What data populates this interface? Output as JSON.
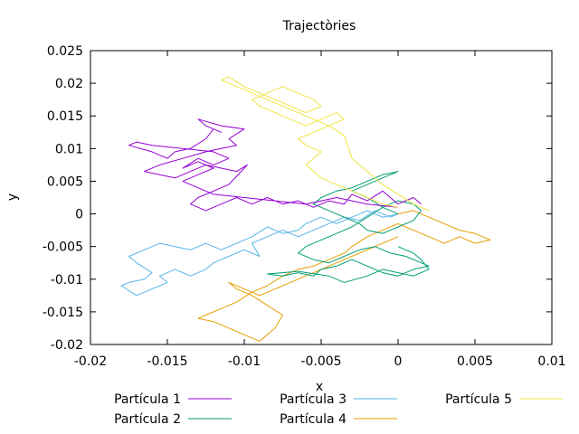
{
  "chart_data": {
    "type": "line",
    "title": "Trajectòries",
    "xlabel": "x",
    "ylabel": "y",
    "xlim": [
      -0.02,
      0.01
    ],
    "ylim": [
      -0.02,
      0.025
    ],
    "xticks": [
      "-0.02",
      "-0.015",
      "-0.01",
      "-0.005",
      "0",
      "0.005",
      "0.01"
    ],
    "xtick_values": [
      -0.02,
      -0.015,
      -0.01,
      -0.005,
      0,
      0.005,
      0.01
    ],
    "yticks": [
      "-0.02",
      "-0.015",
      "-0.01",
      "-0.005",
      "0",
      "0.005",
      "0.01",
      "0.015",
      "0.02",
      "0.025"
    ],
    "ytick_values": [
      -0.02,
      -0.015,
      -0.01,
      -0.005,
      0,
      0.005,
      0.01,
      0.015,
      0.02,
      0.025
    ],
    "grid": false,
    "legend_position": "bottom",
    "series": [
      {
        "name": "Partícula 1",
        "color": "#9400d3",
        "x": [
          0,
          -0.002,
          -0.004,
          -0.006,
          -0.008,
          -0.01,
          -0.012,
          -0.013,
          -0.014,
          -0.013,
          -0.012,
          -0.013,
          -0.014,
          -0.013,
          -0.012,
          -0.011,
          -0.012,
          -0.014,
          -0.016,
          -0.017,
          -0.0175,
          -0.016,
          -0.015,
          -0.0145,
          -0.0135,
          -0.0125,
          -0.012,
          -0.0115,
          -0.0125,
          -0.013,
          -0.0115,
          -0.01,
          -0.011,
          -0.0105,
          -0.0115,
          -0.0125,
          -0.014,
          -0.0155,
          -0.0165,
          -0.0155,
          -0.0145,
          -0.0135,
          -0.0125,
          -0.0115,
          -0.0105,
          -0.0098,
          -0.011,
          -0.012,
          -0.013,
          -0.0135,
          -0.0125,
          -0.0115,
          -0.0105,
          -0.0095,
          -0.0085,
          -0.0075,
          -0.0065,
          -0.0055,
          -0.0045,
          -0.0035,
          -0.003,
          -0.002,
          -0.001,
          0,
          0.001,
          0.0015
        ],
        "y": [
          0.001,
          0.0015,
          0.0025,
          0.0015,
          0.002,
          0.0025,
          0.003,
          0.004,
          0.005,
          0.006,
          0.007,
          0.008,
          0.007,
          0.0085,
          0.0075,
          0.0085,
          0.0095,
          0.01,
          0.0105,
          0.011,
          0.0105,
          0.0095,
          0.0085,
          0.0095,
          0.01,
          0.0115,
          0.013,
          0.0125,
          0.0135,
          0.0145,
          0.0135,
          0.013,
          0.0115,
          0.0105,
          0.01,
          0.0095,
          0.0085,
          0.0075,
          0.0065,
          0.006,
          0.0055,
          0.0065,
          0.0075,
          0.007,
          0.0065,
          0.0075,
          0.0045,
          0.0035,
          0.0025,
          0.0015,
          0.0005,
          0.0015,
          0.0025,
          0.0015,
          0.0025,
          0.0015,
          0.002,
          0.001,
          0.002,
          0.0015,
          0.003,
          0.002,
          0.0035,
          0.0015,
          0.0025,
          0.0015
        ]
      },
      {
        "name": "Partícula 2",
        "color": "#009e73",
        "x": [
          0,
          -0.001,
          -0.002,
          -0.003,
          -0.002,
          -0.001,
          0,
          -0.001,
          -0.002,
          -0.003,
          -0.004,
          -0.005,
          -0.0055,
          -0.0045,
          -0.0035,
          -0.0025,
          -0.002,
          -0.001,
          0,
          0.001,
          0.0015,
          0.001,
          0,
          -0.001,
          -0.002,
          -0.003,
          -0.004,
          -0.005,
          -0.006,
          -0.0065,
          -0.0055,
          -0.0045,
          -0.0035,
          -0.0025,
          -0.0015,
          -0.0005,
          0.0005,
          0.0015,
          0.002,
          0.001,
          0,
          -0.001,
          -0.002,
          -0.003,
          -0.004,
          -0.005,
          -0.0055,
          -0.0065,
          -0.0075,
          -0.0085,
          -0.0065,
          -0.0045,
          -0.0035,
          -0.002,
          -0.001,
          0,
          0.001,
          0.002,
          0.0015,
          0.001,
          0
        ],
        "y": [
          0,
          0.001,
          0.0025,
          0.0035,
          0.0045,
          0.0055,
          0.0065,
          0.006,
          0.005,
          0.004,
          0.0035,
          0.0025,
          0.0015,
          0.0005,
          -0.0005,
          -0.0015,
          -0.0025,
          -0.003,
          -0.002,
          -0.001,
          0.0005,
          0.0015,
          0.002,
          0.001,
          -0.0005,
          -0.002,
          -0.003,
          -0.004,
          -0.005,
          -0.006,
          -0.007,
          -0.0075,
          -0.0065,
          -0.0055,
          -0.005,
          -0.006,
          -0.0065,
          -0.0075,
          -0.008,
          -0.0085,
          -0.0095,
          -0.009,
          -0.008,
          -0.007,
          -0.008,
          -0.0085,
          -0.0095,
          -0.009,
          -0.0095,
          -0.0092,
          -0.0088,
          -0.0095,
          -0.0105,
          -0.0095,
          -0.0085,
          -0.009,
          -0.0095,
          -0.0085,
          -0.007,
          -0.006,
          -0.005
        ]
      },
      {
        "name": "Partícula 3",
        "color": "#56b4e9",
        "x": [
          0,
          -0.001,
          -0.002,
          -0.003,
          -0.004,
          -0.005,
          -0.006,
          -0.0065,
          -0.0075,
          -0.0085,
          -0.0095,
          -0.0105,
          -0.0115,
          -0.0125,
          -0.0135,
          -0.0145,
          -0.0155,
          -0.0165,
          -0.0175,
          -0.017,
          -0.016,
          -0.0165,
          -0.0175,
          -0.018,
          -0.017,
          -0.016,
          -0.015,
          -0.0155,
          -0.0145,
          -0.0135,
          -0.0125,
          -0.012,
          -0.011,
          -0.01,
          -0.009,
          -0.0095,
          -0.0085,
          -0.0075,
          -0.0065,
          -0.0055,
          -0.0045,
          -0.0035,
          -0.0025,
          -0.0015,
          -0.0005,
          0
        ],
        "y": [
          0,
          -0.0005,
          0.0005,
          -0.0005,
          -0.0015,
          -0.0005,
          -0.0015,
          -0.0025,
          -0.003,
          -0.002,
          -0.0035,
          -0.0045,
          -0.0055,
          -0.0045,
          -0.0055,
          -0.005,
          -0.0045,
          -0.0055,
          -0.0065,
          -0.0075,
          -0.009,
          -0.01,
          -0.0105,
          -0.011,
          -0.0125,
          -0.0115,
          -0.0105,
          -0.0095,
          -0.0085,
          -0.0095,
          -0.0085,
          -0.0075,
          -0.0065,
          -0.0055,
          -0.0065,
          -0.0045,
          -0.0035,
          -0.0025,
          -0.0035,
          -0.0025,
          -0.0015,
          -0.0005,
          -0.001,
          0.0005,
          -0.0005,
          0
        ]
      },
      {
        "name": "Partícula 4",
        "color": "#e69f00",
        "x": [
          0,
          0.001,
          0.002,
          0.003,
          0.004,
          0.005,
          0.006,
          0.005,
          0.004,
          0.003,
          0.002,
          0.001,
          0,
          -0.001,
          -0.002,
          -0.003,
          -0.0035,
          -0.0045,
          -0.0055,
          -0.0065,
          -0.0075,
          -0.0085,
          -0.0095,
          -0.0105,
          -0.0115,
          -0.0125,
          -0.013,
          -0.012,
          -0.011,
          -0.01,
          -0.009,
          -0.008,
          -0.0075,
          -0.0085,
          -0.0095,
          -0.0105,
          -0.011,
          -0.01,
          -0.009,
          -0.008,
          -0.007,
          -0.006,
          -0.005,
          -0.004,
          -0.003,
          -0.002,
          -0.001,
          0
        ],
        "y": [
          0,
          0.0005,
          -0.0005,
          -0.0015,
          -0.0025,
          -0.003,
          -0.004,
          -0.0045,
          -0.0035,
          -0.0045,
          -0.0035,
          -0.0025,
          -0.0015,
          -0.0025,
          -0.0035,
          -0.005,
          -0.006,
          -0.007,
          -0.008,
          -0.0085,
          -0.0095,
          -0.011,
          -0.012,
          -0.0135,
          -0.0145,
          -0.0155,
          -0.016,
          -0.0165,
          -0.0175,
          -0.0185,
          -0.0195,
          -0.0175,
          -0.0155,
          -0.014,
          -0.0125,
          -0.0115,
          -0.0105,
          -0.0115,
          -0.0125,
          -0.0115,
          -0.0105,
          -0.0095,
          -0.0085,
          -0.0075,
          -0.0065,
          -0.0055,
          -0.0045,
          -0.0035
        ]
      },
      {
        "name": "Partícula 5",
        "color": "#f0e442",
        "x": [
          0,
          -0.001,
          -0.002,
          -0.003,
          -0.004,
          -0.005,
          -0.0055,
          -0.006,
          -0.0055,
          -0.005,
          -0.006,
          -0.0065,
          -0.0055,
          -0.0045,
          -0.0035,
          -0.004,
          -0.005,
          -0.006,
          -0.007,
          -0.008,
          -0.009,
          -0.0095,
          -0.0085,
          -0.0075,
          -0.0065,
          -0.0055,
          -0.005,
          -0.006,
          -0.007,
          -0.008,
          -0.009,
          -0.01,
          -0.011,
          -0.0115,
          -0.0105,
          -0.0095,
          -0.0085,
          -0.0075,
          -0.0065,
          -0.0055,
          -0.0045,
          -0.0035,
          -0.003,
          -0.002,
          -0.001,
          0,
          0.001,
          0.002
        ],
        "y": [
          0.001,
          0.0015,
          0.0025,
          0.0035,
          0.0045,
          0.0055,
          0.0065,
          0.0075,
          0.0085,
          0.0095,
          0.0105,
          0.0115,
          0.0125,
          0.0135,
          0.0145,
          0.0155,
          0.0145,
          0.0135,
          0.0145,
          0.0155,
          0.0165,
          0.0175,
          0.0185,
          0.0195,
          0.0185,
          0.0175,
          0.0165,
          0.0155,
          0.0165,
          0.0175,
          0.0185,
          0.0195,
          0.021,
          0.0205,
          0.0195,
          0.0185,
          0.0175,
          0.0165,
          0.0155,
          0.0145,
          0.0135,
          0.012,
          0.0085,
          0.0065,
          0.0045,
          0.003,
          0.0015,
          0.0005
        ]
      }
    ]
  }
}
